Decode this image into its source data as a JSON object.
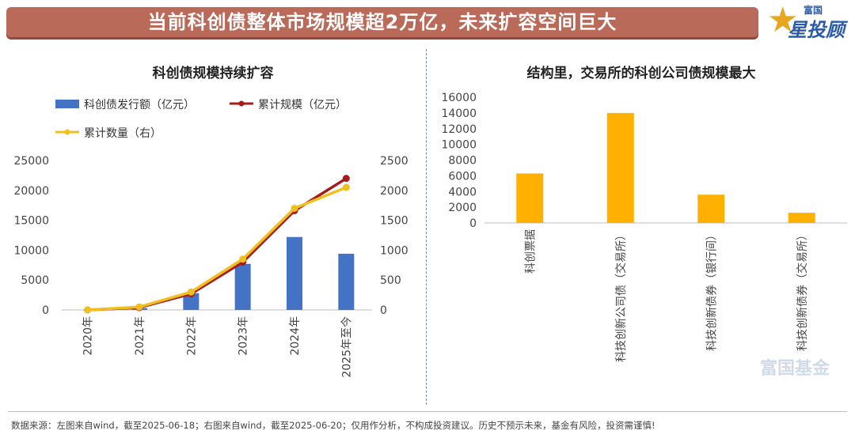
{
  "header": {
    "title": "当前科创债整体市场规模超2万亿，未来扩容空间巨大",
    "logo_small": "富国",
    "logo_big": "星投顾"
  },
  "watermark": "富国基金",
  "footer": {
    "note": "数据来源：左图来自wind，截至2025-06-18；右图来自wind，截至2025-06-20；仅用作分析，不构成投资建议。历史不预示未来，基金有风险，投资需谨慎!"
  },
  "colors": {
    "bar_blue": "#4472c4",
    "line_red": "#a51c1c",
    "line_yellow": "#f2c01e",
    "bar_orange": "#ffb000",
    "banner": "#b96a58"
  },
  "chart_data": [
    {
      "type": "bar",
      "title": "科创债规模持续扩容",
      "categories": [
        "2020年",
        "2021年",
        "2022年",
        "2023年",
        "2024年",
        "2025年至今"
      ],
      "ylim": [
        0,
        25000
      ],
      "y2lim": [
        0,
        2500
      ],
      "yticks": [
        "0",
        "5000",
        "10000",
        "15000",
        "20000",
        "25000"
      ],
      "y2ticks": [
        "0",
        "500",
        "1000",
        "1500",
        "2000",
        "2500"
      ],
      "legend_position": "top",
      "series": [
        {
          "name": "科创债发行额（亿元）",
          "kind": "bar",
          "axis": "left",
          "values": [
            0,
            300,
            2800,
            7700,
            12200,
            9400
          ]
        },
        {
          "name": "累计规模（亿元）",
          "kind": "line",
          "axis": "left",
          "values": [
            0,
            400,
            2700,
            8000,
            16600,
            22000
          ]
        },
        {
          "name": "累计数量（右）",
          "kind": "line",
          "axis": "right",
          "values": [
            0,
            50,
            300,
            850,
            1700,
            2050
          ]
        }
      ]
    },
    {
      "type": "bar",
      "title": "结构里，交易所的科创公司债规模最大",
      "categories": [
        "科创票据",
        "科技创新公司债（交易所）",
        "科技创新债券（银行间）",
        "科技创新债券（交易所）"
      ],
      "ylim": [
        0,
        16000
      ],
      "yticks": [
        "0",
        "2000",
        "4000",
        "6000",
        "8000",
        "10000",
        "12000",
        "14000",
        "16000"
      ],
      "series": [
        {
          "kind": "bar",
          "values": [
            6300,
            14000,
            3600,
            1300
          ]
        }
      ]
    }
  ]
}
